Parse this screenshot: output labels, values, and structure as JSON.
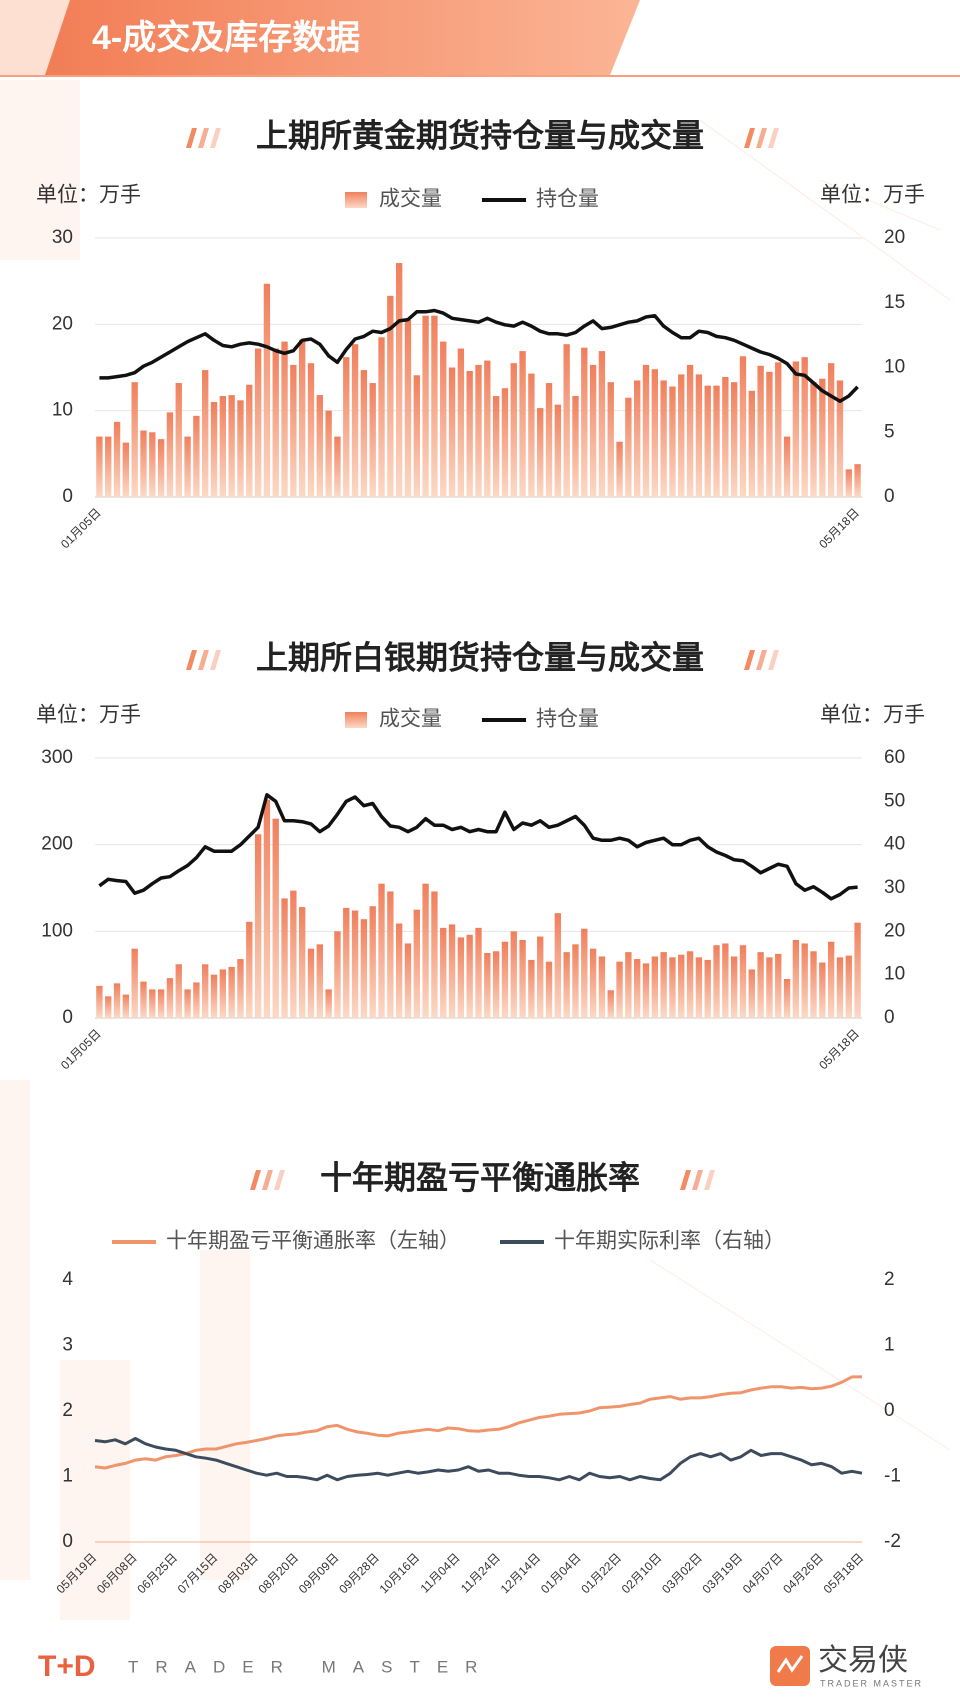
{
  "header": {
    "title": "4-成交及库存数据"
  },
  "footer": {
    "logo": "T+D",
    "tagline": "TRADER MASTER",
    "brand": "交易侠",
    "brand_sub": "TRADER MASTER"
  },
  "chart_data": [
    {
      "type": "combo",
      "title": "上期所黄金期货持仓量与成交量",
      "y_label": "单位：万手",
      "y2_label": "单位：万手",
      "grid": true,
      "categories": [
        "01月05日",
        null,
        null,
        null,
        null,
        null,
        null,
        null,
        null,
        null,
        null,
        null,
        null,
        null,
        null,
        null,
        null,
        null,
        null,
        null,
        null,
        null,
        null,
        null,
        null,
        null,
        null,
        null,
        null,
        null,
        null,
        null,
        null,
        null,
        null,
        null,
        null,
        null,
        null,
        null,
        null,
        null,
        null,
        null,
        null,
        null,
        null,
        null,
        null,
        null,
        null,
        null,
        null,
        null,
        null,
        null,
        null,
        null,
        null,
        null,
        null,
        null,
        null,
        null,
        null,
        null,
        null,
        null,
        null,
        null,
        null,
        null,
        null,
        null,
        null,
        null,
        null,
        null,
        null,
        null,
        null,
        null,
        null,
        null,
        null,
        null,
        "05月18日"
      ],
      "ylim": [
        0,
        30
      ],
      "yticks": [
        0,
        10,
        20,
        30
      ],
      "y2lim": [
        0,
        20
      ],
      "y2ticks": [
        0,
        5,
        10,
        15,
        20
      ],
      "series": [
        {
          "name": "成交量",
          "color": "#f08060",
          "values": [
            7,
            7,
            8.7,
            6.3,
            13.3,
            7.7,
            7.5,
            6.7,
            9.8,
            13.2,
            7,
            9.4,
            14.7,
            11,
            11.7,
            11.8,
            11.2,
            13,
            17.2,
            24.7,
            17.2,
            18,
            15.3,
            18.2,
            15.5,
            11.8,
            10,
            7,
            16.2,
            17.7,
            14.7,
            13.2,
            18.5,
            23.3,
            27.1,
            20.5,
            14.1,
            21,
            21,
            18,
            15,
            17.2,
            14.6,
            15.3,
            15.8,
            11.7,
            12.6,
            15.5,
            16.9,
            14.3,
            10.3,
            13.2,
            10.7,
            17.7,
            11.7,
            17.3,
            15.3,
            16.9,
            13.3,
            6.4,
            11.5,
            13.5,
            15.3,
            14.8,
            13.5,
            12.8,
            14.2,
            15.3,
            14.2,
            12.9,
            12.9,
            13.9,
            13.3,
            16.3,
            12.3,
            15.2,
            14.5,
            15.6,
            7,
            15.7,
            16.2,
            13.3,
            13.7,
            15.5,
            13.5,
            3.2,
            3.8
          ]
        },
        {
          "name": "持仓量",
          "color": "#111111",
          "axis": "y2",
          "values": [
            9.2,
            9.2,
            9.3,
            9.4,
            9.6,
            10.1,
            10.4,
            10.8,
            11.2,
            11.6,
            12,
            12.3,
            12.6,
            12.1,
            11.7,
            11.6,
            11.8,
            11.9,
            11.8,
            11.6,
            11.3,
            11.1,
            11.3,
            12.1,
            12.2,
            11.8,
            10.9,
            10.4,
            11.4,
            12.2,
            12.4,
            12.8,
            12.7,
            13,
            13.6,
            13.7,
            14.3,
            14.3,
            14.4,
            14.2,
            13.8,
            13.7,
            13.6,
            13.5,
            13.8,
            13.5,
            13.3,
            13.2,
            13.5,
            13.2,
            12.8,
            12.6,
            12.6,
            12.5,
            12.7,
            13.2,
            13.6,
            13,
            13.1,
            13.3,
            13.5,
            13.6,
            13.9,
            14,
            13.2,
            12.7,
            12.3,
            12.3,
            12.8,
            12.7,
            12.4,
            12.3,
            12.1,
            11.8,
            11.5,
            11.2,
            11.0,
            10.7,
            10.3,
            9.5,
            9.4,
            8.8,
            8.2,
            7.8,
            7.4,
            7.8,
            8.5
          ]
        }
      ]
    },
    {
      "type": "combo",
      "title": "上期所白银期货持仓量与成交量",
      "y_label": "单位：万手",
      "y2_label": "单位：万手",
      "grid": true,
      "categories": [
        "01月05日",
        null,
        null,
        null,
        null,
        null,
        null,
        null,
        null,
        null,
        null,
        null,
        null,
        null,
        null,
        null,
        null,
        null,
        null,
        null,
        null,
        null,
        null,
        null,
        null,
        null,
        null,
        null,
        null,
        null,
        null,
        null,
        null,
        null,
        null,
        null,
        null,
        null,
        null,
        null,
        null,
        null,
        null,
        null,
        null,
        null,
        null,
        null,
        null,
        null,
        null,
        null,
        null,
        null,
        null,
        null,
        null,
        null,
        null,
        null,
        null,
        null,
        null,
        null,
        null,
        null,
        null,
        null,
        null,
        null,
        null,
        null,
        null,
        null,
        null,
        null,
        null,
        null,
        null,
        null,
        null,
        null,
        null,
        null,
        null,
        null,
        "05月18日"
      ],
      "ylim": [
        0,
        300
      ],
      "yticks": [
        0,
        100,
        200,
        300
      ],
      "y2lim": [
        0,
        60
      ],
      "y2ticks": [
        0,
        10,
        20,
        30,
        40,
        50,
        60
      ],
      "series": [
        {
          "name": "成交量",
          "color": "#f08060",
          "values": [
            37,
            25,
            40,
            27,
            80,
            42,
            33,
            33,
            46,
            62,
            33,
            41,
            62,
            50,
            56,
            59,
            68,
            111,
            212,
            252,
            230,
            138,
            147,
            128,
            80,
            85,
            33,
            100,
            127,
            124,
            114,
            129,
            155,
            146,
            109,
            86,
            125,
            155,
            146,
            104,
            108,
            93,
            96,
            104,
            75,
            77,
            88,
            100,
            90,
            67,
            94,
            65,
            121,
            76,
            85,
            103,
            80,
            71,
            32,
            65,
            76,
            68,
            63,
            71,
            76,
            70,
            73,
            77,
            70,
            67,
            84,
            86,
            71,
            84,
            56,
            76,
            70,
            74,
            45,
            90,
            86,
            77,
            64,
            88,
            70,
            72,
            110
          ]
        },
        {
          "name": "持仓量",
          "color": "#111111",
          "axis": "y2",
          "values": [
            30.5,
            32,
            31.7,
            31.5,
            28.8,
            29.5,
            31,
            32.3,
            32.6,
            34,
            35.2,
            37,
            39.5,
            38.5,
            38.5,
            38.5,
            40,
            42,
            44,
            51.5,
            50,
            45.5,
            45.5,
            45.3,
            44.8,
            43,
            44.3,
            47,
            50,
            51,
            49,
            49.5,
            46.5,
            44.3,
            44,
            43,
            44,
            46,
            44.5,
            44.5,
            43.5,
            44,
            43,
            43.5,
            43,
            43,
            47.5,
            43.5,
            45,
            44.5,
            45.5,
            44,
            44.5,
            45.5,
            46.5,
            44.5,
            41.5,
            41,
            41,
            41.5,
            41,
            39.5,
            40.5,
            41,
            41.5,
            40,
            40,
            41,
            41.5,
            39.5,
            38.3,
            37.5,
            36.5,
            36.3,
            35,
            33.5,
            34.5,
            35.5,
            35,
            31,
            29.5,
            30.3,
            29,
            27.5,
            28.5,
            30,
            30.2
          ]
        }
      ]
    },
    {
      "type": "line",
      "title": "十年期盈亏平衡通胀率",
      "grid": false,
      "categories": [
        "05月19日",
        null,
        null,
        null,
        "06月08日",
        null,
        null,
        null,
        "06月25日",
        null,
        null,
        null,
        "07月15日",
        null,
        null,
        null,
        "08月03日",
        null,
        null,
        null,
        "08月20日",
        null,
        null,
        null,
        "09月09日",
        null,
        null,
        null,
        "09月28日",
        null,
        null,
        null,
        "10月16日",
        null,
        null,
        null,
        "11月04日",
        null,
        null,
        null,
        "11月24日",
        null,
        null,
        null,
        "12月14日",
        null,
        null,
        null,
        "01月04日",
        null,
        null,
        null,
        "01月22日",
        null,
        null,
        null,
        "02月10日",
        null,
        null,
        null,
        "03月02日",
        null,
        null,
        null,
        "03月19日",
        null,
        null,
        null,
        "04月07日",
        null,
        null,
        null,
        "04月26日",
        null,
        null,
        null,
        "05月18日"
      ],
      "ylim": [
        0,
        4
      ],
      "yticks": [
        0,
        1,
        2,
        3,
        4
      ],
      "y2lim": [
        -2,
        2
      ],
      "y2ticks": [
        -2,
        -1,
        0,
        1,
        2
      ],
      "series": [
        {
          "name": "十年期盈亏平衡通胀率（左轴）",
          "color": "#f0956b",
          "values": [
            1.15,
            1.13,
            1.17,
            1.2,
            1.25,
            1.27,
            1.25,
            1.3,
            1.32,
            1.35,
            1.4,
            1.42,
            1.42,
            1.46,
            1.5,
            1.52,
            1.55,
            1.58,
            1.62,
            1.64,
            1.65,
            1.68,
            1.7,
            1.76,
            1.78,
            1.72,
            1.68,
            1.66,
            1.63,
            1.62,
            1.66,
            1.68,
            1.7,
            1.72,
            1.7,
            1.74,
            1.73,
            1.7,
            1.69,
            1.71,
            1.72,
            1.76,
            1.82,
            1.86,
            1.9,
            1.92,
            1.95,
            1.96,
            1.97,
            2.0,
            2.05,
            2.06,
            2.07,
            2.1,
            2.12,
            2.18,
            2.2,
            2.22,
            2.18,
            2.2,
            2.2,
            2.22,
            2.25,
            2.27,
            2.28,
            2.32,
            2.35,
            2.37,
            2.37,
            2.35,
            2.36,
            2.34,
            2.35,
            2.38,
            2.44,
            2.52,
            2.52
          ]
        },
        {
          "name": "十年期实际利率（右轴）",
          "color": "#3d4b5c",
          "axis": "y2",
          "values": [
            -0.45,
            -0.47,
            -0.44,
            -0.5,
            -0.42,
            -0.5,
            -0.55,
            -0.58,
            -0.6,
            -0.65,
            -0.7,
            -0.72,
            -0.75,
            -0.8,
            -0.85,
            -0.9,
            -0.95,
            -0.98,
            -0.95,
            -1.0,
            -1.0,
            -1.02,
            -1.05,
            -0.98,
            -1.05,
            -1.0,
            -0.98,
            -0.97,
            -0.95,
            -0.98,
            -0.95,
            -0.92,
            -0.95,
            -0.93,
            -0.9,
            -0.92,
            -0.9,
            -0.85,
            -0.92,
            -0.9,
            -0.95,
            -0.95,
            -0.98,
            -1.0,
            -1.0,
            -1.02,
            -1.05,
            -1.0,
            -1.05,
            -0.95,
            -1.0,
            -1.02,
            -1.0,
            -1.05,
            -1.0,
            -1.03,
            -1.05,
            -0.95,
            -0.8,
            -0.7,
            -0.65,
            -0.7,
            -0.65,
            -0.75,
            -0.7,
            -0.6,
            -0.68,
            -0.65,
            -0.65,
            -0.7,
            -0.75,
            -0.82,
            -0.8,
            -0.85,
            -0.95,
            -0.92,
            -0.95
          ]
        }
      ]
    }
  ]
}
